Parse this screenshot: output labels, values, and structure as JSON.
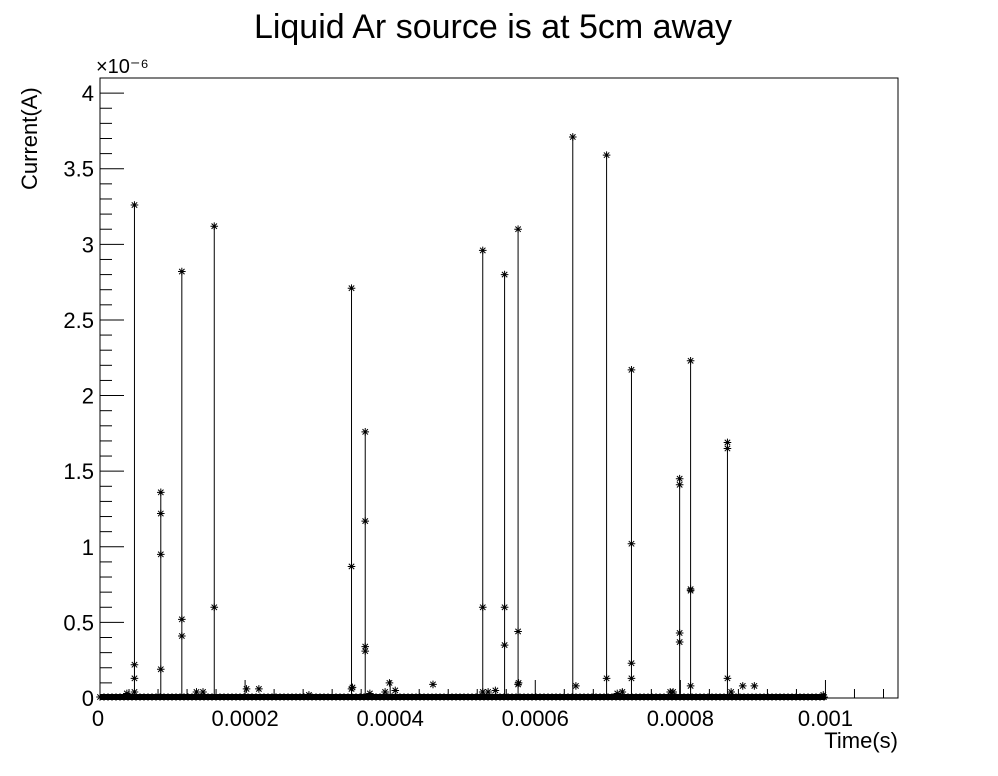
{
  "chart_data": {
    "type": "line",
    "title": "Liquid Ar source is at 5cm away",
    "xlabel": "Time(s)",
    "ylabel": "Current(A)",
    "y_multiplier": "×10⁻⁶",
    "xlim": [
      0,
      0.0011
    ],
    "ylim": [
      0,
      4.1
    ],
    "x_ticks": [
      0,
      0.0002,
      0.0004,
      0.0006,
      0.0008,
      0.001
    ],
    "x_tick_labels": [
      "0",
      "0.0002",
      "0.0004",
      "0.0006",
      "0.0008",
      "0.001"
    ],
    "y_ticks": [
      0,
      0.5,
      1,
      1.5,
      2,
      2.5,
      3,
      3.5,
      4
    ],
    "y_tick_labels": [
      "0",
      "0.5",
      "1",
      "1.5",
      "2",
      "2.5",
      "3",
      "3.5",
      "4"
    ],
    "baseline": {
      "x_range": [
        0,
        0.001
      ],
      "y": 0
    },
    "marker": "asterisk",
    "grid": false,
    "legend": "none",
    "pulses": [
      {
        "x": 4.75e-05,
        "y": [
          0.04,
          0.13,
          0.22,
          3.26
        ]
      },
      {
        "x": 8.38e-05,
        "y": [
          0.19,
          0.95,
          1.22,
          1.36
        ]
      },
      {
        "x": 0.0001128,
        "y": [
          0.41,
          0.52,
          2.82
        ]
      },
      {
        "x": 0.0001575,
        "y": [
          0.6,
          3.12
        ]
      },
      {
        "x": 0.0003467,
        "y": [
          0.06,
          0.87,
          2.71
        ]
      },
      {
        "x": 0.0003656,
        "y": [
          0.31,
          0.34,
          1.17,
          1.76
        ]
      },
      {
        "x": 0.0005276,
        "y": [
          0.04,
          0.6,
          2.96
        ]
      },
      {
        "x": 0.0005577,
        "y": [
          0.35,
          0.6,
          2.8
        ]
      },
      {
        "x": 0.0005763,
        "y": [
          0.09,
          0.44,
          3.1
        ]
      },
      {
        "x": 0.0006517,
        "y": [
          3.71
        ]
      },
      {
        "x": 0.0006983,
        "y": [
          0.13,
          3.59
        ]
      },
      {
        "x": 0.0007326,
        "y": [
          0.13,
          0.23,
          1.02,
          2.17
        ]
      },
      {
        "x": 0.000799,
        "y": [
          0.37,
          0.43,
          1.41,
          1.45
        ]
      },
      {
        "x": 0.0008141,
        "y": [
          0.08,
          0.71,
          0.72,
          2.23
        ]
      },
      {
        "x": 0.0008649,
        "y": [
          0.13,
          1.65,
          1.69
        ]
      }
    ],
    "small_points": [
      {
        "x": 3.7e-05,
        "y": 0.03
      },
      {
        "x": 0.000133,
        "y": 0.04
      },
      {
        "x": 0.000142,
        "y": 0.04
      },
      {
        "x": 0.000202,
        "y": 0.06
      },
      {
        "x": 0.000219,
        "y": 0.06
      },
      {
        "x": 0.000288,
        "y": 0.02
      },
      {
        "x": 0.000348,
        "y": 0.07
      },
      {
        "x": 0.000372,
        "y": 0.03
      },
      {
        "x": 0.000393,
        "y": 0.04
      },
      {
        "x": 0.000399,
        "y": 0.1
      },
      {
        "x": 0.000407,
        "y": 0.05
      },
      {
        "x": 0.000459,
        "y": 0.09
      },
      {
        "x": 0.000535,
        "y": 0.04
      },
      {
        "x": 0.000545,
        "y": 0.05
      },
      {
        "x": 0.000577,
        "y": 0.1
      },
      {
        "x": 0.000656,
        "y": 0.08
      },
      {
        "x": 0.000713,
        "y": 0.03
      },
      {
        "x": 0.00072,
        "y": 0.04
      },
      {
        "x": 0.000786,
        "y": 0.04
      },
      {
        "x": 0.00079,
        "y": 0.04
      },
      {
        "x": 0.00087,
        "y": 0.04
      },
      {
        "x": 0.000886,
        "y": 0.08
      },
      {
        "x": 0.000902,
        "y": 0.08
      },
      {
        "x": 0.000997,
        "y": 0.02
      }
    ]
  }
}
